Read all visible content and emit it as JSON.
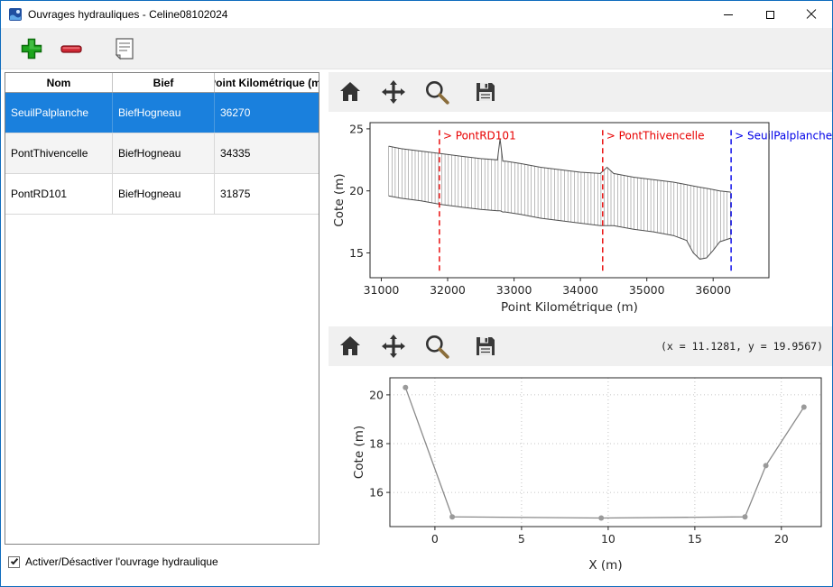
{
  "window": {
    "title": "Ouvrages hydrauliques - Celine08102024"
  },
  "toolbar": {
    "buttons": [
      {
        "name": "add",
        "icon": "plus-icon"
      },
      {
        "name": "remove",
        "icon": "minus-icon"
      },
      {
        "name": "notes",
        "icon": "notes-icon"
      }
    ]
  },
  "table": {
    "columns": [
      "Nom",
      "Bief",
      "Point Kilométrique (m)"
    ],
    "rows": [
      {
        "nom": "SeuilPalplanche",
        "bief": "BiefHogneau",
        "pk": "36270",
        "selected": true
      },
      {
        "nom": "PontThivencelle",
        "bief": "BiefHogneau",
        "pk": "34335",
        "selected": false
      },
      {
        "nom": "PontRD101",
        "bief": "BiefHogneau",
        "pk": "31875",
        "selected": false
      }
    ]
  },
  "checkbox": {
    "label": "Activer/Désactiver l'ouvrage hydraulique",
    "checked": true
  },
  "plots": {
    "coords_readout": "(x = 11.1281,  y = 19.9567)"
  },
  "colors": {
    "selection": "#1a80dd",
    "structure_red": "#e80000",
    "structure_blue": "#0000e8",
    "profile_line": "#4d4d4d",
    "hatch": "#8c8c8c",
    "section_line": "#8a8a8a"
  },
  "chart_data": [
    {
      "type": "line",
      "title": "",
      "xlabel": "Point Kilométrique (m)",
      "ylabel": "Cote (m)",
      "xlim": [
        30830,
        36840
      ],
      "ylim": [
        13.0,
        25.5
      ],
      "xticks": [
        31000,
        32000,
        33000,
        34000,
        35000,
        36000
      ],
      "yticks": [
        15,
        20,
        25
      ],
      "grid": false,
      "hatch_step_m": 50,
      "line_top": 24.9,
      "line_bottom": 13.4,
      "profile": {
        "x": [
          31110,
          31300,
          31600,
          31900,
          32200,
          32500,
          32750,
          32790,
          32830,
          32870,
          33100,
          33400,
          33700,
          34000,
          34300,
          34400,
          34500,
          34800,
          35100,
          35400,
          35600,
          35700,
          35800,
          35900,
          36000,
          36100,
          36270
        ],
        "top": [
          23.6,
          23.4,
          23.2,
          23.0,
          22.8,
          22.6,
          22.5,
          24.2,
          22.4,
          22.4,
          22.2,
          21.9,
          21.7,
          21.5,
          21.4,
          21.9,
          21.4,
          21.1,
          20.9,
          20.7,
          20.5,
          20.4,
          20.3,
          20.2,
          20.1,
          20.0,
          19.9
        ],
        "bottom": [
          19.6,
          19.4,
          19.2,
          18.9,
          18.7,
          18.5,
          18.4,
          18.4,
          18.3,
          18.3,
          18.1,
          17.8,
          17.6,
          17.4,
          17.2,
          17.2,
          17.2,
          16.9,
          16.7,
          16.4,
          16.0,
          15.0,
          14.5,
          14.6,
          15.2,
          15.9,
          16.2
        ]
      },
      "structures": [
        {
          "x": 31875,
          "color": "#e80000",
          "label": "> PontRD101"
        },
        {
          "x": 34335,
          "color": "#e80000",
          "label": "> PontThivencelle"
        },
        {
          "x": 36270,
          "color": "#0000e8",
          "label": "> SeuilPalplanche"
        }
      ]
    },
    {
      "type": "line",
      "title": "",
      "xlabel": "X (m)",
      "ylabel": "Cote (m)",
      "xlim": [
        -2.6,
        22.3
      ],
      "ylim": [
        14.6,
        20.7
      ],
      "xticks": [
        0,
        5,
        10,
        15,
        20
      ],
      "yticks": [
        16,
        18,
        20
      ],
      "grid": true,
      "points": {
        "x": [
          -1.7,
          1.0,
          9.6,
          17.9,
          19.1,
          21.3
        ],
        "y": [
          20.3,
          15.0,
          14.95,
          15.0,
          17.1,
          19.5
        ]
      }
    }
  ]
}
